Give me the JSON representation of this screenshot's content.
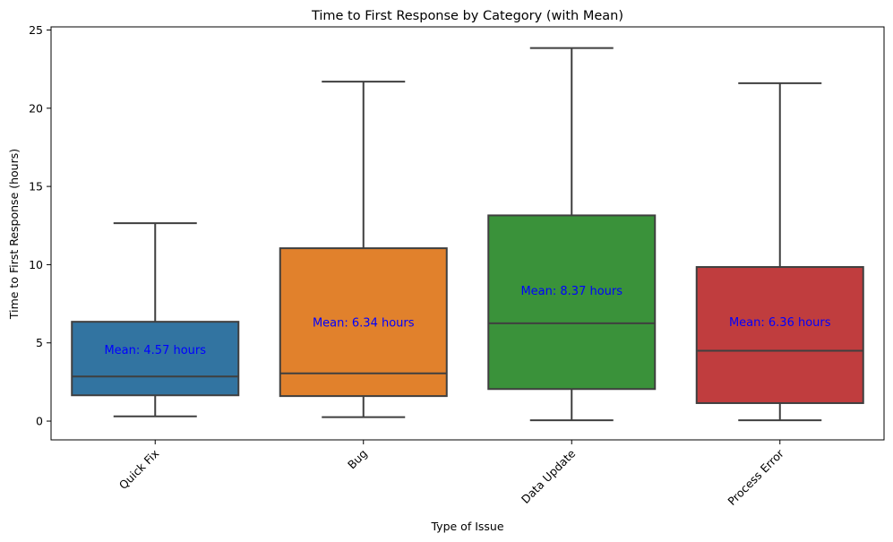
{
  "chart_data": {
    "type": "box",
    "title": "Time to First Response by Category (with Mean)",
    "xlabel": "Type of Issue",
    "ylabel": "Time to First Response (hours)",
    "ylim": [
      -1.2,
      25.2
    ],
    "yticks": [
      0,
      5,
      10,
      15,
      20,
      25
    ],
    "grid": false,
    "categories": [
      {
        "name": "Quick Fix",
        "color": "#3274a1",
        "min": 0.3,
        "q1": 1.65,
        "median": 2.85,
        "q3": 6.35,
        "max": 12.65,
        "mean": 4.57,
        "mean_label": "Mean: 4.57 hours"
      },
      {
        "name": "Bug",
        "color": "#e1812c",
        "min": 0.25,
        "q1": 1.6,
        "median": 3.05,
        "q3": 11.05,
        "max": 21.7,
        "mean": 6.34,
        "mean_label": "Mean: 6.34 hours"
      },
      {
        "name": "Data Update",
        "color": "#3a923a",
        "min": 0.05,
        "q1": 2.05,
        "median": 6.25,
        "q3": 13.15,
        "max": 23.85,
        "mean": 8.37,
        "mean_label": "Mean: 8.37 hours"
      },
      {
        "name": "Process Error",
        "color": "#c03d3e",
        "min": 0.05,
        "q1": 1.15,
        "median": 4.5,
        "q3": 9.85,
        "max": 21.6,
        "mean": 6.36,
        "mean_label": "Mean: 6.36 hours"
      }
    ]
  }
}
